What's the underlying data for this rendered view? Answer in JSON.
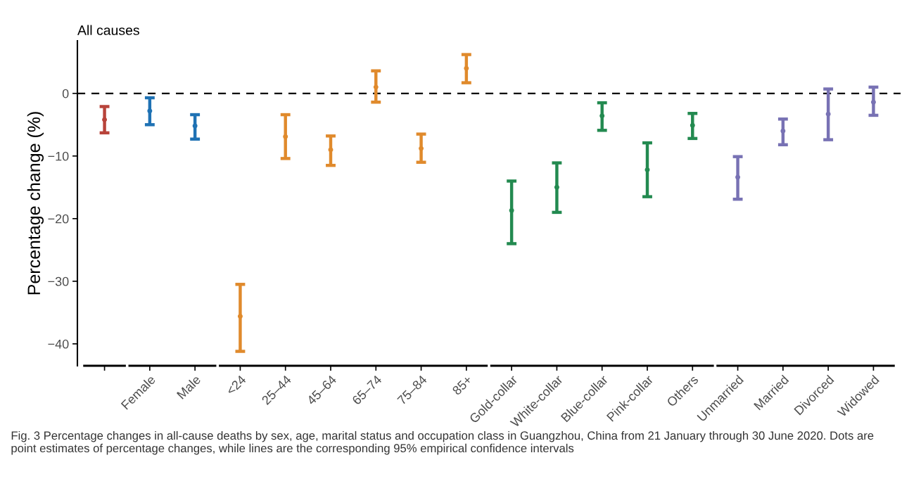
{
  "chart_data": {
    "type": "scatter",
    "title": "All causes",
    "ylabel": "Percentage change (%)",
    "categories": [
      null,
      "Female",
      "Male",
      "<24",
      "25–44",
      "45–64",
      "65–74",
      "75–84",
      "85+",
      "Gold-collar",
      "White-collar",
      "Blue-collar",
      "Pink-collar",
      "Others",
      "Unmarried",
      "Married",
      "Divorced",
      "Widowed"
    ],
    "values": [
      -4.2,
      -2.8,
      -5.2,
      -35.6,
      -6.9,
      -9.0,
      1.0,
      -8.8,
      4.0,
      -18.7,
      -15.0,
      -3.6,
      -12.2,
      -5.1,
      -13.4,
      -6.0,
      -3.3,
      -1.4
    ],
    "errors": [
      [
        -6.3,
        -2.1
      ],
      [
        -5.0,
        -0.7
      ],
      [
        -7.3,
        -3.4
      ],
      [
        -41.2,
        -30.5
      ],
      [
        -10.4,
        -3.4
      ],
      [
        -11.5,
        -6.8
      ],
      [
        -1.4,
        3.6
      ],
      [
        -11.0,
        -6.5
      ],
      [
        1.7,
        6.2
      ],
      [
        -24.0,
        -14.0
      ],
      [
        -19.0,
        -11.1
      ],
      [
        -5.9,
        -1.5
      ],
      [
        -16.5,
        -7.9
      ],
      [
        -7.2,
        -3.2
      ],
      [
        -16.9,
        -10.1
      ],
      [
        -8.2,
        -4.1
      ],
      [
        -7.4,
        0.7
      ],
      [
        -3.5,
        1.0
      ]
    ],
    "colors": [
      "#b8433a",
      "#1f72b4",
      "#1f72b4",
      "#e08a2c",
      "#e08a2c",
      "#e08a2c",
      "#e08a2c",
      "#e08a2c",
      "#e08a2c",
      "#238a50",
      "#238a50",
      "#238a50",
      "#238a50",
      "#238a50",
      "#7872b4",
      "#7872b4",
      "#7872b4",
      "#7872b4"
    ],
    "marker": "circle",
    "ylim": [
      -43.5,
      8.4
    ],
    "yticks": [
      0,
      -10,
      -20,
      -30,
      -40
    ],
    "ref_lines": [
      {
        "axis": "y",
        "value": 0,
        "label": null,
        "color": "#000000",
        "line_style": "dashed"
      }
    ],
    "grid": false,
    "legend": false,
    "annotations": [
      "Fig. 3 Percentage changes in all-cause deaths by sex, age, marital status and occupation class in Guangzhou, China from 21 January through 30 June 2020. Dots are point estimates of percentage changes, while lines are the corresponding 95% empirical confidence intervals"
    ]
  }
}
